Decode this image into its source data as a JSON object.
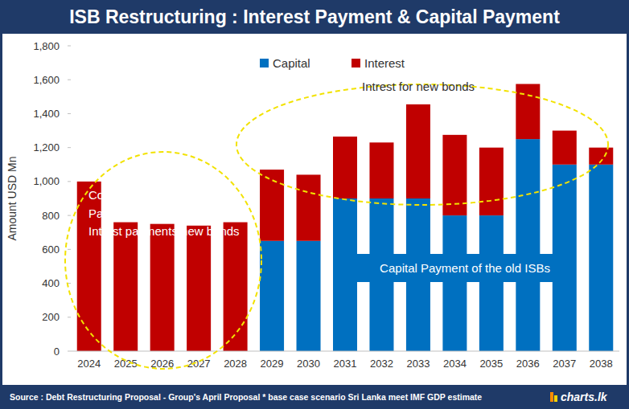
{
  "chart_data": {
    "type": "bar",
    "stacked": true,
    "title": "ISB Restructuring : Interest Payment & Capital Payment",
    "y_label": "Amount USD Mn",
    "categories": [
      "2024",
      "2025",
      "2026",
      "2027",
      "2028",
      "2029",
      "2030",
      "2031",
      "2032",
      "2033",
      "2034",
      "2035",
      "2036",
      "2037",
      "2038"
    ],
    "series": [
      {
        "name": "Capital",
        "color": "#0070c0",
        "values": [
          0,
          0,
          0,
          0,
          0,
          650,
          650,
          900,
          900,
          900,
          800,
          800,
          1250,
          1100,
          1100
        ]
      },
      {
        "name": "Interest",
        "color": "#c00000",
        "values": [
          1000,
          760,
          750,
          740,
          760,
          420,
          390,
          365,
          330,
          555,
          475,
          400,
          325,
          200,
          100
        ]
      }
    ],
    "ylim": [
      0,
      1800
    ],
    "yticks": [
      0,
      200,
      400,
      600,
      800,
      {
        "value": 1000,
        "label": "1,000"
      },
      {
        "value": 1200,
        "label": "1,200"
      },
      {
        "value": 1400,
        "label": "1,400"
      },
      {
        "value": 1600,
        "label": "1,600"
      },
      {
        "value": 1800,
        "label": "1,800"
      }
    ],
    "grid": false,
    "legend": "top",
    "annotations": [
      "Consent fee",
      "Past due Interest payments",
      "Intrest payments new bonds",
      "Intrest for new bonds",
      "Capital Payment of the old ISBs"
    ],
    "source": "Source : Debt Restructuring Proposal - Group's April Proposal * base case scenario Sri Lanka meet IMF GDP estimate",
    "brand": "charts.lk"
  }
}
